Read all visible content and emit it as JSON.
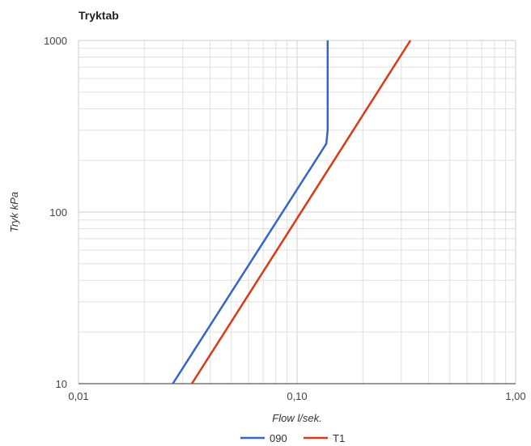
{
  "chart_data": {
    "type": "line",
    "title": "Tryktab",
    "xlabel": "Flow l/sek.",
    "ylabel": "Tryk kPa",
    "x_scale": "log",
    "y_scale": "log",
    "xlim": [
      0.01,
      1.0
    ],
    "ylim": [
      10,
      1000
    ],
    "x_ticks": [
      {
        "value": 0.01,
        "label": "0,01"
      },
      {
        "value": 0.1,
        "label": "0,10"
      },
      {
        "value": 1.0,
        "label": "1,00"
      }
    ],
    "y_ticks": [
      {
        "value": 10,
        "label": "10"
      },
      {
        "value": 100,
        "label": "100"
      },
      {
        "value": 1000,
        "label": "1000"
      }
    ],
    "grid": true,
    "legend_position": "bottom",
    "series": [
      {
        "name": "090",
        "color": "#3366cc",
        "points": [
          {
            "x": 0.027,
            "y": 10
          },
          {
            "x": 0.136,
            "y": 250
          },
          {
            "x": 0.138,
            "y": 300
          },
          {
            "x": 0.138,
            "y": 1000
          }
        ]
      },
      {
        "name": "T1",
        "color": "#dc3912",
        "points": [
          {
            "x": 0.033,
            "y": 10
          },
          {
            "x": 0.33,
            "y": 1000
          }
        ]
      }
    ]
  }
}
